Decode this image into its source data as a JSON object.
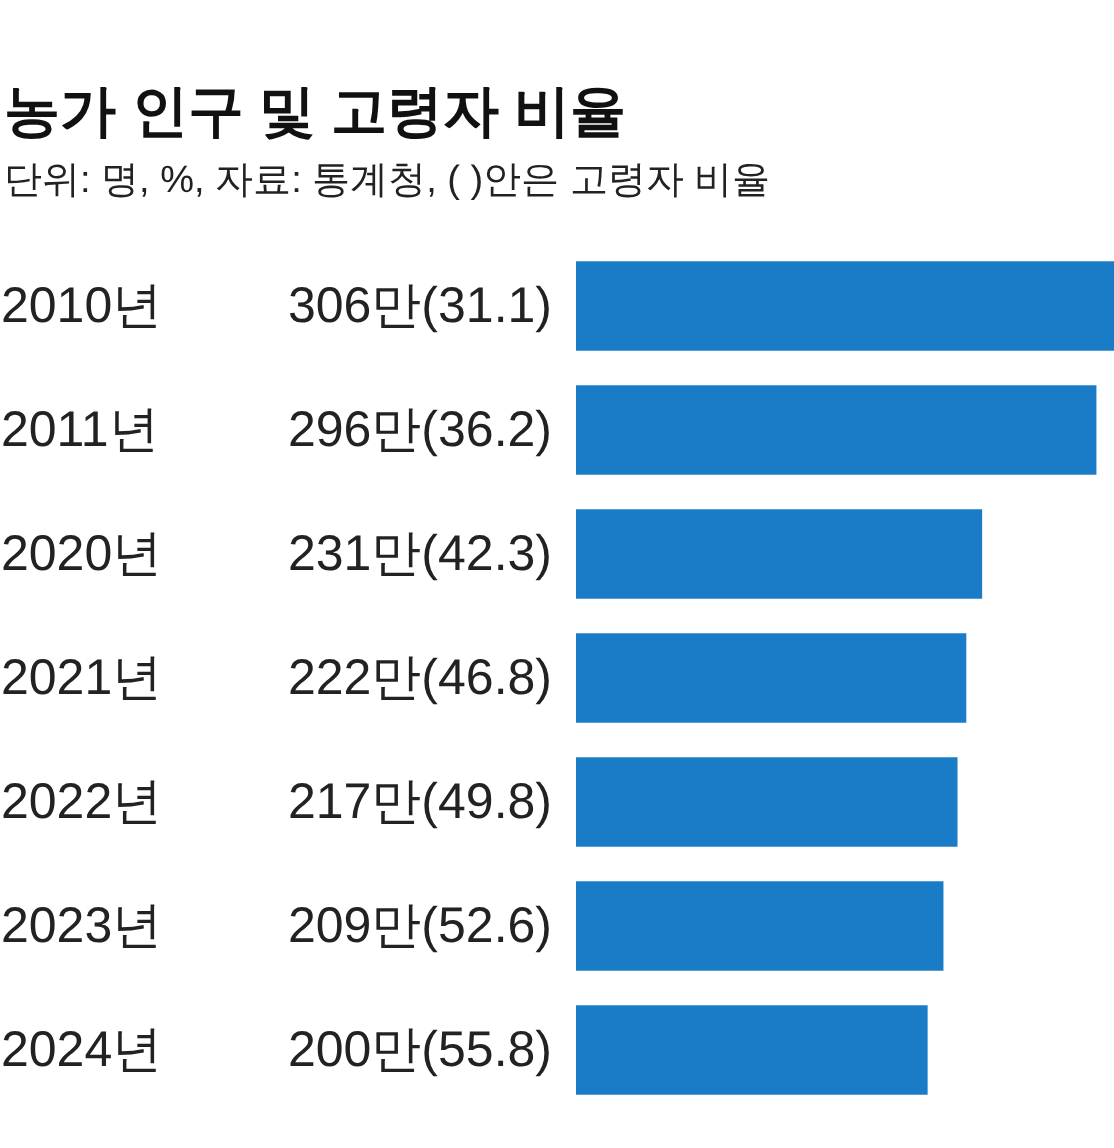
{
  "chart_data": {
    "type": "bar",
    "orientation": "horizontal",
    "title": "농가 인구 및 고령자 비율",
    "subtitle": "단위: 명, %, 자료: 통계청, ( )안은 고령자 비율",
    "categories": [
      "2010년",
      "2011년",
      "2020년",
      "2021년",
      "2022년",
      "2023년",
      "2024년"
    ],
    "values": [
      306,
      296,
      231,
      222,
      217,
      209,
      200
    ],
    "value_labels": [
      "306만(31.1)",
      "296만(36.2)",
      "231만(42.3)",
      "222만(46.8)",
      "217만(49.8)",
      "209만(52.6)",
      "200만(55.8)"
    ],
    "color": "#1a7cc6"
  }
}
